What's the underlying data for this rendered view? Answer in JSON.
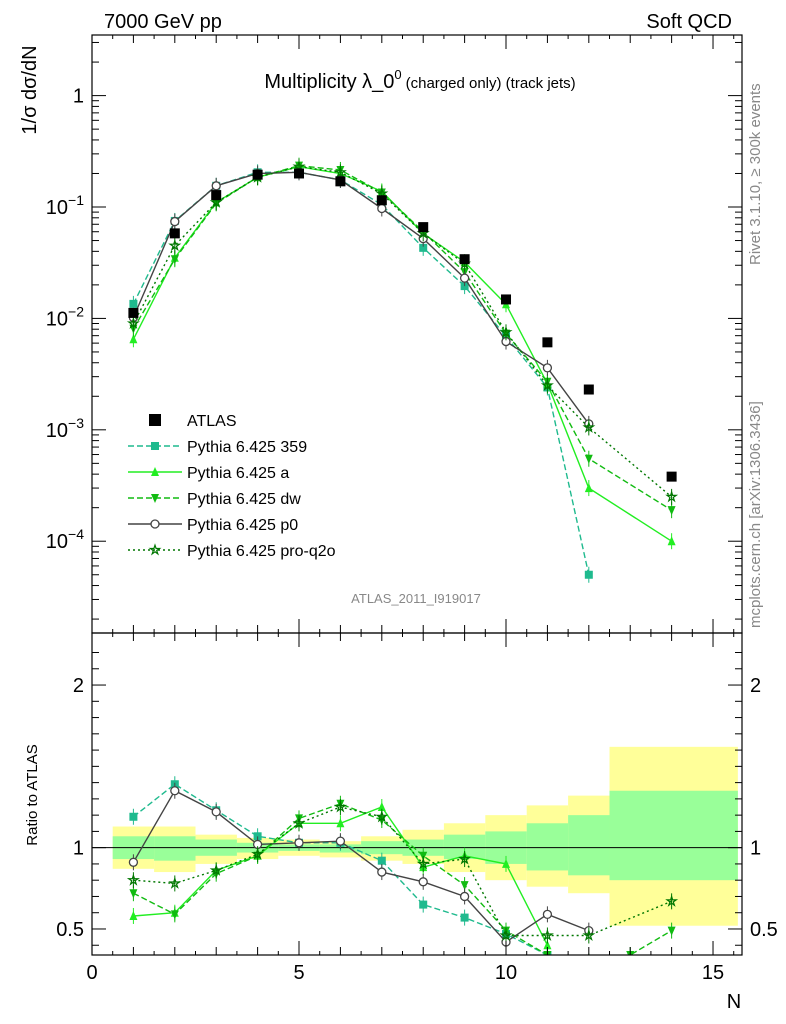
{
  "header": {
    "left": "7000 GeV pp",
    "right": "Soft QCD"
  },
  "side_text": {
    "top": "Rivet 3.1.10, ≥ 300k events",
    "bottom": "mcplots.cern.ch [arXiv:1306.3436]"
  },
  "chart_data": [
    {
      "type": "line",
      "title": "Multiplicity λ_0⁰ (charged only) (track jets)",
      "title_main": "Multiplicity λ_0",
      "title_sup": "0",
      "title_rest": "(charged only) (track jets)",
      "analysis_label": "ATLAS_2011_I919017",
      "ylabel": "1/σ dσ/dN",
      "yscale": "log",
      "ylim": [
        1.5e-05,
        3.5
      ],
      "xlim": [
        0,
        15.7
      ],
      "yticks": [
        {
          "value": 1,
          "label": "1"
        },
        {
          "value": 0.1,
          "label": "10",
          "exp": "−1"
        },
        {
          "value": 0.01,
          "label": "10",
          "exp": "−2"
        },
        {
          "value": 0.001,
          "label": "10",
          "exp": "−3"
        },
        {
          "value": 0.0001,
          "label": "10",
          "exp": "−4"
        }
      ],
      "legend_position": "middle-left",
      "data": {
        "name": "ATLAS",
        "x": [
          1,
          2,
          3,
          4,
          5,
          6,
          7,
          8,
          9,
          10,
          11,
          12,
          14
        ],
        "y": [
          0.0112,
          0.058,
          0.128,
          0.195,
          0.2,
          0.17,
          0.115,
          0.066,
          0.034,
          0.0148,
          0.0061,
          0.0023,
          0.00038
        ]
      },
      "series": [
        {
          "name": "Pythia 6.425 359",
          "color": "#1fba8e",
          "dash": "6,3",
          "marker": "square",
          "x": [
            1,
            2,
            3,
            4,
            5,
            6,
            7,
            8,
            9,
            10,
            11,
            12
          ],
          "y": [
            0.0135,
            0.075,
            0.155,
            0.205,
            0.205,
            0.175,
            0.105,
            0.043,
            0.0195,
            0.0069,
            0.0024,
            5e-05
          ]
        },
        {
          "name": "Pythia 6.425 a",
          "color": "#22ee22",
          "dash": "",
          "marker": "triangle-up",
          "x": [
            1,
            2,
            3,
            4,
            5,
            6,
            7,
            8,
            9,
            10,
            11,
            12,
            14
          ],
          "y": [
            0.0065,
            0.035,
            0.11,
            0.185,
            0.23,
            0.2,
            0.138,
            0.058,
            0.032,
            0.0134,
            0.0026,
            0.0003,
            0.0001
          ]
        },
        {
          "name": "Pythia 6.425 dw",
          "color": "#11bb11",
          "dash": "6,3",
          "marker": "triangle-down",
          "x": [
            1,
            2,
            3,
            4,
            5,
            6,
            7,
            8,
            9,
            10,
            11,
            12,
            14
          ],
          "y": [
            0.0081,
            0.034,
            0.108,
            0.185,
            0.235,
            0.215,
            0.135,
            0.06,
            0.026,
            0.0073,
            0.0027,
            0.00055,
            0.00019
          ]
        },
        {
          "name": "Pythia 6.425 p0",
          "color": "#444444",
          "dash": "",
          "marker": "circle-open",
          "x": [
            1,
            2,
            3,
            4,
            5,
            6,
            7,
            8,
            9,
            10,
            11,
            12
          ],
          "y": [
            0.0102,
            0.074,
            0.155,
            0.2,
            0.205,
            0.175,
            0.097,
            0.052,
            0.023,
            0.0062,
            0.0036,
            0.00113
          ]
        },
        {
          "name": "Pythia 6.425 pro-q2o",
          "color": "#007700",
          "dash": "2,3",
          "marker": "star-open",
          "x": [
            1,
            2,
            3,
            4,
            5,
            6,
            7,
            8,
            9,
            10,
            11,
            12,
            14
          ],
          "y": [
            0.009,
            0.045,
            0.11,
            0.185,
            0.23,
            0.205,
            0.132,
            0.058,
            0.031,
            0.0075,
            0.0025,
            0.00105,
            0.00025
          ]
        }
      ]
    },
    {
      "type": "line",
      "title": "",
      "ylabel": "Ratio to ATLAS",
      "xlabel": "N",
      "xlim": [
        0,
        15.7
      ],
      "ylim": [
        0.34,
        2.32
      ],
      "xticks": [
        0,
        5,
        10,
        15
      ],
      "yticks": [
        0.5,
        1,
        2
      ],
      "reference_line": 1,
      "uncertainty_bands": {
        "edges": [
          0.5,
          1.5,
          2.5,
          3.5,
          4.5,
          5.5,
          6.5,
          7.5,
          8.5,
          9.5,
          10.5,
          11.5,
          12.5,
          15.6
        ],
        "stat_inner": [
          [
            0.93,
            1.07
          ],
          [
            0.92,
            1.07
          ],
          [
            0.95,
            1.05
          ],
          [
            0.97,
            1.03
          ],
          [
            0.98,
            1.02
          ],
          [
            0.97,
            1.02
          ],
          [
            0.96,
            1.04
          ],
          [
            0.95,
            1.05
          ],
          [
            0.93,
            1.08
          ],
          [
            0.9,
            1.1
          ],
          [
            0.86,
            1.15
          ],
          [
            0.83,
            1.2
          ],
          [
            0.8,
            1.35
          ]
        ],
        "syst_outer": [
          [
            0.87,
            1.13
          ],
          [
            0.85,
            1.13
          ],
          [
            0.9,
            1.08
          ],
          [
            0.93,
            1.06
          ],
          [
            0.95,
            1.05
          ],
          [
            0.94,
            1.04
          ],
          [
            0.92,
            1.07
          ],
          [
            0.9,
            1.11
          ],
          [
            0.85,
            1.15
          ],
          [
            0.8,
            1.2
          ],
          [
            0.76,
            1.26
          ],
          [
            0.72,
            1.32
          ],
          [
            0.52,
            1.62
          ]
        ]
      },
      "series": [
        {
          "name": "Pythia 6.425 359",
          "color": "#1fba8e",
          "dash": "6,3",
          "marker": "square",
          "x": [
            1,
            2,
            3,
            4,
            5,
            6,
            7,
            8,
            9,
            10,
            11
          ],
          "y": [
            1.19,
            1.39,
            1.23,
            1.07,
            1.03,
            1.03,
            0.92,
            0.65,
            0.57,
            0.47,
            0.34
          ]
        },
        {
          "name": "Pythia 6.425 a",
          "color": "#22ee22",
          "dash": "",
          "marker": "triangle-up",
          "x": [
            1,
            2,
            3,
            4,
            5,
            6,
            7,
            8,
            9,
            10,
            11
          ],
          "y": [
            0.58,
            0.6,
            0.86,
            0.95,
            1.15,
            1.15,
            1.25,
            0.88,
            0.95,
            0.9,
            0.4
          ]
        },
        {
          "name": "Pythia 6.425 dw",
          "color": "#11bb11",
          "dash": "6,3",
          "marker": "triangle-down",
          "x": [
            1,
            2,
            3,
            4,
            5,
            6,
            7,
            8,
            9,
            10,
            11,
            12,
            13,
            14
          ],
          "y": [
            0.72,
            0.59,
            0.84,
            0.95,
            1.18,
            1.27,
            1.17,
            0.95,
            0.77,
            0.49,
            0.34,
            0.3,
            0.34,
            0.49
          ]
        },
        {
          "name": "Pythia 6.425 p0",
          "color": "#444444",
          "dash": "",
          "marker": "circle-open",
          "x": [
            1,
            2,
            3,
            4,
            5,
            6,
            7,
            8,
            9,
            10,
            11,
            12
          ],
          "y": [
            0.91,
            1.35,
            1.22,
            1.02,
            1.03,
            1.04,
            0.85,
            0.79,
            0.7,
            0.42,
            0.59,
            0.49
          ]
        },
        {
          "name": "Pythia 6.425 pro-q2o",
          "color": "#007700",
          "dash": "2,3",
          "marker": "star-open",
          "x": [
            1,
            2,
            3,
            4,
            5,
            6,
            7,
            8,
            9,
            10,
            11,
            12,
            14
          ],
          "y": [
            0.8,
            0.78,
            0.86,
            0.96,
            1.15,
            1.25,
            1.19,
            0.9,
            0.93,
            0.46,
            0.46,
            0.46,
            0.67
          ]
        }
      ]
    }
  ]
}
